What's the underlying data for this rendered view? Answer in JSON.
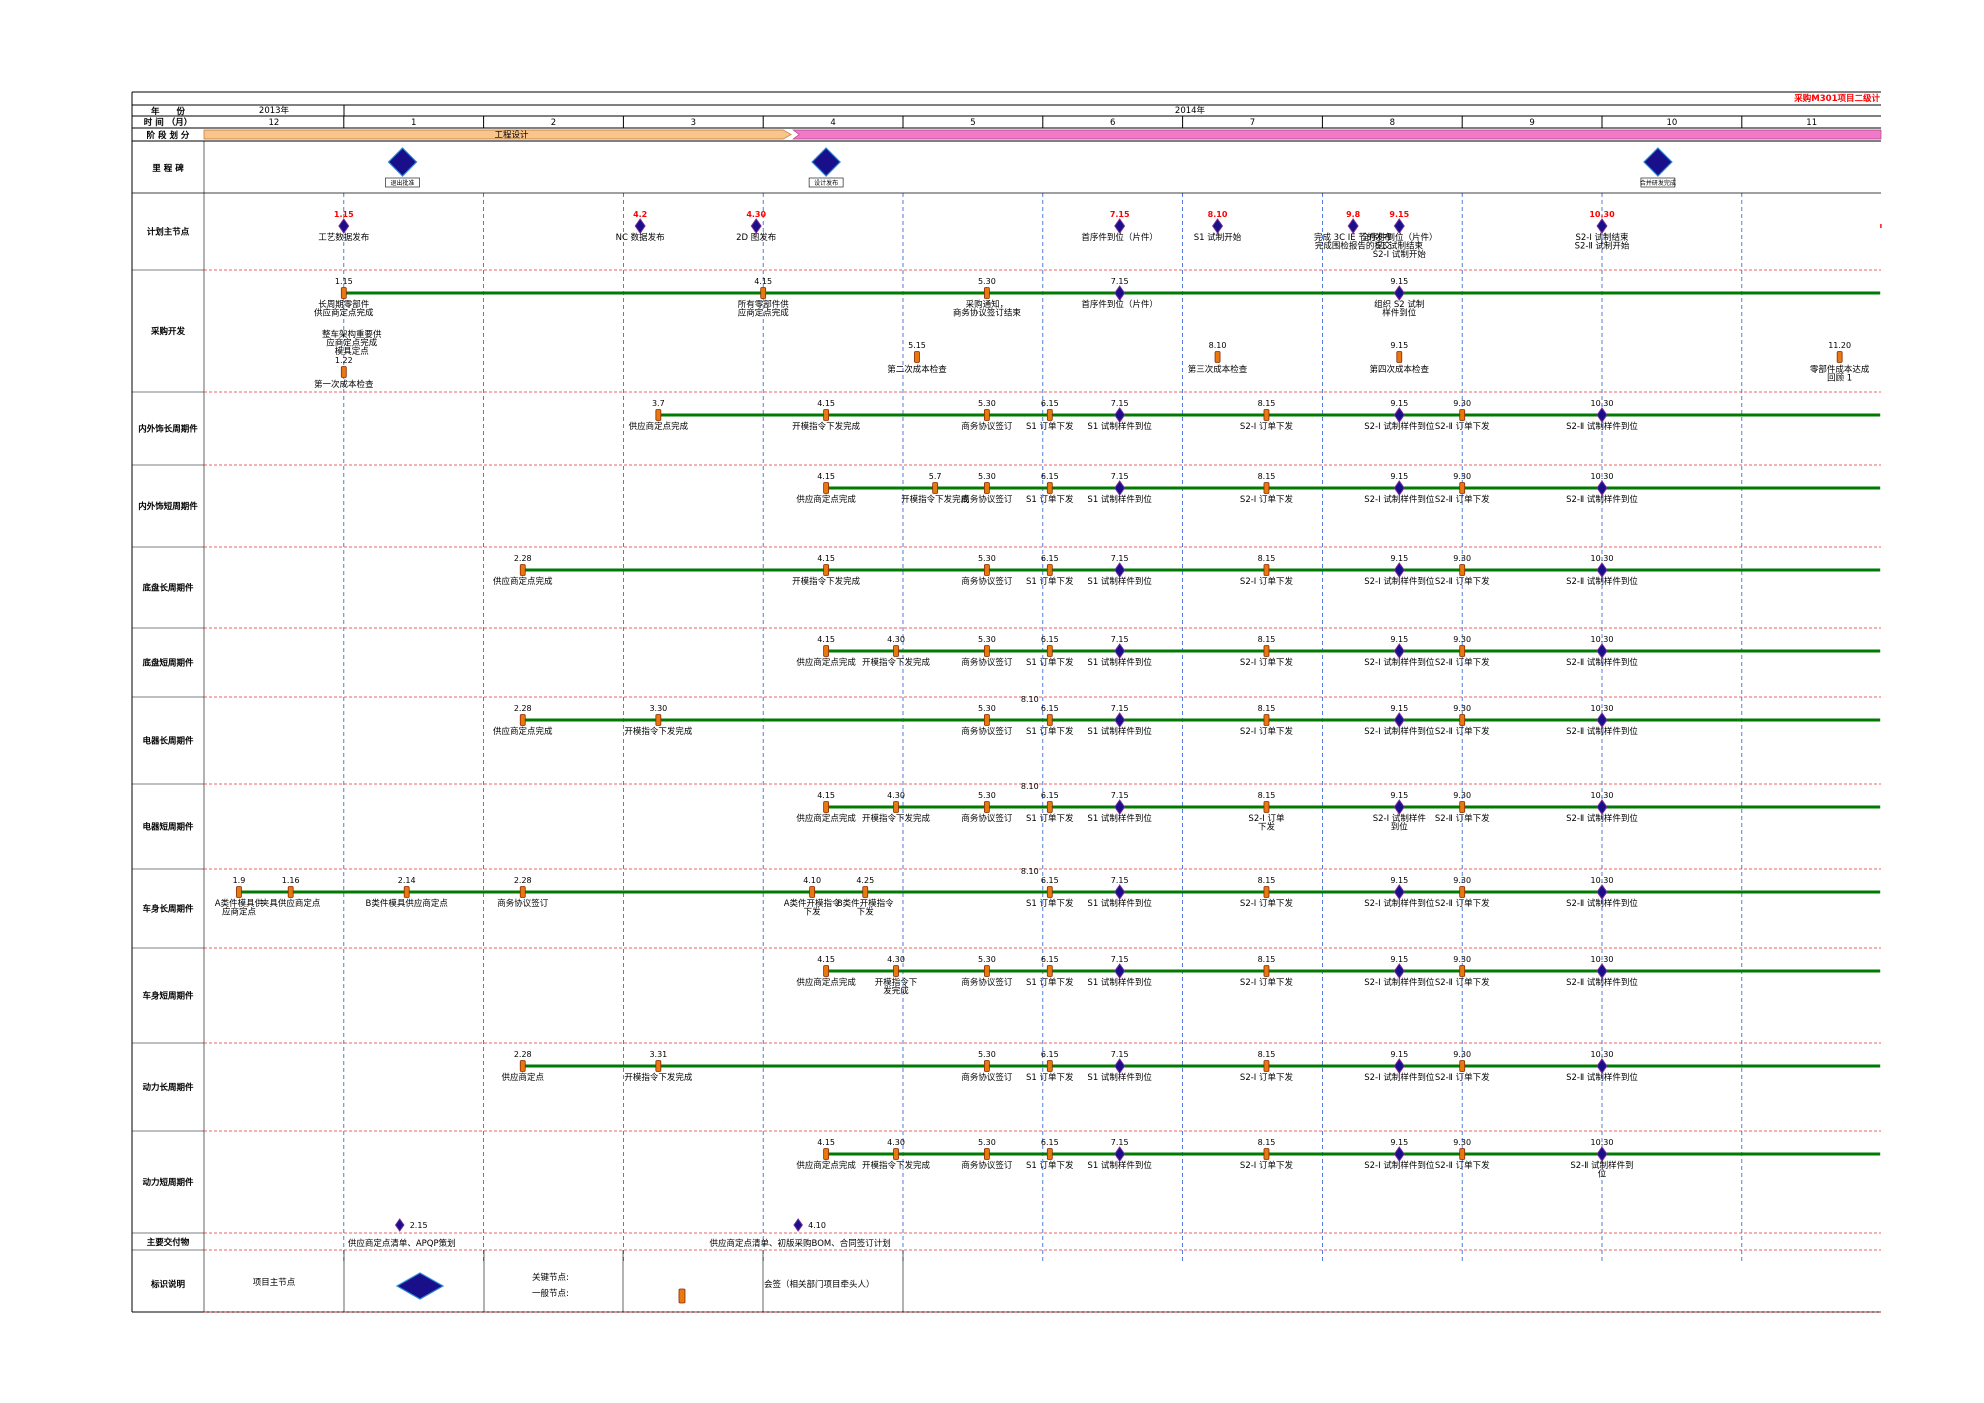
{
  "header": {
    "title": "采购M301项目二级计",
    "year_label": "年　　份",
    "month_label": "时 间 （月）",
    "phase_label": "阶 段 划 分",
    "years": [
      "2013年",
      "2014年"
    ],
    "months": [
      "12",
      "1",
      "2",
      "3",
      "4",
      "5",
      "6",
      "7",
      "8",
      "9",
      "10",
      "11"
    ],
    "phase_design": "工程设计"
  },
  "milestone_row": {
    "label": "里 程 碑",
    "items": [
      {
        "text": "退出批准",
        "month": 1.15
      },
      {
        "text": "设计发布",
        "month": 4.15
      },
      {
        "text": "合并研发完成",
        "month": 10.0
      }
    ]
  },
  "rows": [
    {
      "label": "计划主节点",
      "line_color": "#ff0000",
      "line_start": 12.0,
      "line_end": 11.99,
      "nodes": [
        {
          "date": "1.15",
          "t": 1.0,
          "kind": "major",
          "label": "工艺数据发布",
          "date_red": true
        },
        {
          "date": "4.2",
          "t": 3.12,
          "kind": "major",
          "label": "NC 数据发布",
          "date_red": true
        },
        {
          "date": "4.30",
          "t": 3.95,
          "kind": "major",
          "label": "2D 图发布",
          "date_red": true
        },
        {
          "date": "7.15",
          "t": 6.55,
          "kind": "major",
          "label": "首序件到位（片件）",
          "date_red": true
        },
        {
          "date": "8.10",
          "t": 7.25,
          "kind": "major",
          "label": "S1 试制开始",
          "date_red": true
        },
        {
          "date": "9.8",
          "t": 8.22,
          "kind": "major",
          "label": "完成 3C IE 节的发布\n完成围检报告的提交",
          "date_red": true
        },
        {
          "date": "9.15",
          "t": 8.55,
          "kind": "major",
          "label": "全序件到位（片件）\nS1 试制结束\nS2-Ⅰ 试制开始",
          "date_red": true
        },
        {
          "date": "10.30",
          "t": 10.0,
          "kind": "major",
          "label": "S2-Ⅰ 试制结束\nS2-Ⅱ 试制开始",
          "date_red": true
        }
      ]
    },
    {
      "label": "采购开发",
      "line_color": "#007a00",
      "line_start": 1.0,
      "line_end": 11.99,
      "nodes": [
        {
          "date": "1.15",
          "t": 1.0,
          "kind": "minor",
          "label": "长周期零部件\n供应商定点完成"
        },
        {
          "date": "4.15",
          "t": 4.0,
          "kind": "minor",
          "label": "所有零部件供\n应商定点完成"
        },
        {
          "date": "5.30",
          "t": 5.6,
          "kind": "minor",
          "label": "采购通知，\n商务协议签订结束"
        },
        {
          "date": "7.15",
          "t": 6.55,
          "kind": "major",
          "label": "首序件到位（片件）"
        },
        {
          "date": "9.15",
          "t": 8.55,
          "kind": "major",
          "label": "组织 S2 试制\n样件到位"
        }
      ],
      "extras": [
        {
          "text": "整车架构重要供\n应商定点完成\n模具定点",
          "t": 1.0
        },
        {
          "date": "1.22",
          "label": "第一次成本检查",
          "t": 1.0
        },
        {
          "date": "5.15",
          "label": "第二次成本检查",
          "t": 5.1
        },
        {
          "date": "8.10",
          "label": "第三次成本检查",
          "t": 7.25
        },
        {
          "date": "9.15",
          "label": "第四次成本检查",
          "t": 8.55
        },
        {
          "date": "11.20",
          "label": "零部件成本达成\n回顾 1",
          "t": 11.7
        }
      ]
    },
    {
      "label": "内外饰长周期件",
      "line_color": "#007a00",
      "line_start": 3.25,
      "line_end": 11.99,
      "nodes": [
        {
          "date": "3.7",
          "t": 3.25,
          "kind": "minor",
          "label": "供应商定点完成"
        },
        {
          "date": "4.15",
          "t": 4.45,
          "kind": "minor",
          "label": "开模指令下发完成"
        },
        {
          "date": "5.30",
          "t": 5.6,
          "kind": "minor",
          "label": "商务协议签订"
        },
        {
          "date": "6.15",
          "t": 6.05,
          "kind": "minor",
          "label": "S1 订单下发"
        },
        {
          "date": "7.15",
          "t": 6.55,
          "kind": "major",
          "label": "S1 试制样件到位"
        },
        {
          "date": "8.15",
          "t": 7.6,
          "kind": "minor",
          "label": "S2-Ⅰ 订单下发"
        },
        {
          "date": "9.15",
          "t": 8.55,
          "kind": "major",
          "label": "S2-Ⅰ 试制样件到位"
        },
        {
          "date": "9.30",
          "t": 9.0,
          "kind": "minor",
          "label": "S2-Ⅱ 订单下发"
        },
        {
          "date": "10.30",
          "t": 10.0,
          "kind": "major",
          "label": "S2-Ⅱ 试制样件到位"
        }
      ]
    },
    {
      "label": "内外饰短周期件",
      "line_color": "#007a00",
      "line_start": 4.45,
      "line_end": 11.99,
      "nodes": [
        {
          "date": "4.15",
          "t": 4.45,
          "kind": "minor",
          "label": "供应商定点完成"
        },
        {
          "date": "5.7",
          "t": 5.23,
          "kind": "minor",
          "label": "开模指令下发完成"
        },
        {
          "date": "5.30",
          "t": 5.6,
          "kind": "minor",
          "label": "商务协议签订"
        },
        {
          "date": "6.15",
          "t": 6.05,
          "kind": "minor",
          "label": "S1 订单下发"
        },
        {
          "date": "7.15",
          "t": 6.55,
          "kind": "major",
          "label": "S1 试制样件到位"
        },
        {
          "date": "8.15",
          "t": 7.6,
          "kind": "minor",
          "label": "S2-Ⅰ 订单下发"
        },
        {
          "date": "9.15",
          "t": 8.55,
          "kind": "major",
          "label": "S2-Ⅰ 试制样件到位"
        },
        {
          "date": "9.30",
          "t": 9.0,
          "kind": "minor",
          "label": "S2-Ⅱ 订单下发"
        },
        {
          "date": "10.30",
          "t": 10.0,
          "kind": "major",
          "label": "S2-Ⅱ 试制样件到位"
        }
      ]
    },
    {
      "label": "底盘长周期件",
      "line_color": "#007a00",
      "line_start": 2.28,
      "line_end": 11.99,
      "nodes": [
        {
          "date": "2.28",
          "t": 2.28,
          "kind": "minor",
          "label": "供应商定点完成"
        },
        {
          "date": "4.15",
          "t": 4.45,
          "kind": "minor",
          "label": "开模指令下发完成"
        },
        {
          "date": "5.30",
          "t": 5.6,
          "kind": "minor",
          "label": "商务协议签订"
        },
        {
          "date": "6.15",
          "t": 6.05,
          "kind": "minor",
          "label": "S1 订单下发"
        },
        {
          "date": "7.15",
          "t": 6.55,
          "kind": "major",
          "label": "S1 试制样件到位"
        },
        {
          "date": "8.15",
          "t": 7.6,
          "kind": "minor",
          "label": "S2-Ⅰ 订单下发"
        },
        {
          "date": "9.15",
          "t": 8.55,
          "kind": "major",
          "label": "S2-Ⅰ 试制样件到位"
        },
        {
          "date": "9.30",
          "t": 9.0,
          "kind": "minor",
          "label": "S2-Ⅱ 订单下发"
        },
        {
          "date": "10.30",
          "t": 10.0,
          "kind": "major",
          "label": "S2-Ⅱ 试制样件到位"
        }
      ]
    },
    {
      "label": "底盘短周期件",
      "line_color": "#007a00",
      "line_start": 4.45,
      "line_end": 11.99,
      "nodes": [
        {
          "date": "4.15",
          "t": 4.45,
          "kind": "minor",
          "label": "供应商定点完成"
        },
        {
          "date": "4.30",
          "t": 4.95,
          "kind": "minor",
          "label": "开模指令下发完成"
        },
        {
          "date": "5.30",
          "t": 5.6,
          "kind": "minor",
          "label": "商务协议签订"
        },
        {
          "date": "6.15",
          "t": 6.05,
          "kind": "minor",
          "label": "S1 订单下发"
        },
        {
          "date": "7.15",
          "t": 6.55,
          "kind": "major",
          "label": "S1 试制样件到位"
        },
        {
          "date": "8.15",
          "t": 7.6,
          "kind": "minor",
          "label": "S2-Ⅰ 订单下发"
        },
        {
          "date": "9.15",
          "t": 8.55,
          "kind": "major",
          "label": "S2-Ⅰ 试制样件到位"
        },
        {
          "date": "9.30",
          "t": 9.0,
          "kind": "minor",
          "label": "S2-Ⅱ 订单下发"
        },
        {
          "date": "10.30",
          "t": 10.0,
          "kind": "major",
          "label": "S2-Ⅱ 试制样件到位"
        }
      ]
    },
    {
      "label": "电器长周期件",
      "line_color": "#007a00",
      "line_start": 2.28,
      "line_end": 11.99,
      "nodes": [
        {
          "date": "2.28",
          "t": 2.28,
          "kind": "minor",
          "label": "供应商定点完成"
        },
        {
          "date": "3.30",
          "t": 3.25,
          "kind": "minor",
          "label": "开模指令下发完成"
        },
        {
          "date": "5.30",
          "t": 5.6,
          "kind": "minor",
          "label": "商务协议签订"
        },
        {
          "date": "6.15",
          "t": 6.05,
          "kind": "minor",
          "label": "S1 订单下发",
          "top": "8.10"
        },
        {
          "date": "7.15",
          "t": 6.55,
          "kind": "major",
          "label": "S1 试制样件到位"
        },
        {
          "date": "8.15",
          "t": 7.6,
          "kind": "minor",
          "label": "S2-Ⅰ 订单下发"
        },
        {
          "date": "9.15",
          "t": 8.55,
          "kind": "major",
          "label": "S2-Ⅰ 试制样件到位"
        },
        {
          "date": "9.30",
          "t": 9.0,
          "kind": "minor",
          "label": "S2-Ⅱ 订单下发"
        },
        {
          "date": "10.30",
          "t": 10.0,
          "kind": "major",
          "label": "S2-Ⅱ 试制样件到位"
        }
      ]
    },
    {
      "label": "电器短周期件",
      "line_color": "#007a00",
      "line_start": 4.45,
      "line_end": 11.99,
      "nodes": [
        {
          "date": "4.15",
          "t": 4.45,
          "kind": "minor",
          "label": "供应商定点完成"
        },
        {
          "date": "4.30",
          "t": 4.95,
          "kind": "minor",
          "label": "开模指令下发完成"
        },
        {
          "date": "5.30",
          "t": 5.6,
          "kind": "minor",
          "label": "商务协议签订"
        },
        {
          "date": "6.15",
          "t": 6.05,
          "kind": "minor",
          "label": "S1 订单下发",
          "top": "8.10"
        },
        {
          "date": "7.15",
          "t": 6.55,
          "kind": "major",
          "label": "S1 试制样件到位"
        },
        {
          "date": "8.15",
          "t": 7.6,
          "kind": "minor",
          "label": "S2-Ⅰ 订单\n下发"
        },
        {
          "date": "9.15",
          "t": 8.55,
          "kind": "major",
          "label": "S2-Ⅰ 试制样件\n到位"
        },
        {
          "date": "9.30",
          "t": 9.0,
          "kind": "minor",
          "label": "S2-Ⅱ 订单下发"
        },
        {
          "date": "10.30",
          "t": 10.0,
          "kind": "major",
          "label": "S2-Ⅱ 试制样件到位"
        }
      ]
    },
    {
      "label": "车身长周期件",
      "line_color": "#007a00",
      "line_start": 0.25,
      "line_end": 11.99,
      "nodes": [
        {
          "date": "1.9",
          "t": 0.25,
          "kind": "minor",
          "label": "A类件模具供\n应商定点"
        },
        {
          "date": "1.16",
          "t": 0.62,
          "kind": "minor",
          "label": "夹具供应商定点"
        },
        {
          "date": "2.14",
          "t": 1.45,
          "kind": "minor",
          "label": "B类件模具供应商定点"
        },
        {
          "date": "2.28",
          "t": 2.28,
          "kind": "minor",
          "label": "商务协议签订"
        },
        {
          "date": "4.10",
          "t": 4.35,
          "kind": "minor",
          "label": "A类件开模指令\n下发"
        },
        {
          "date": "4.25",
          "t": 4.73,
          "kind": "minor",
          "label": "B类件开模指令\n下发"
        },
        {
          "date": "6.15",
          "t": 6.05,
          "kind": "minor",
          "label": "S1 订单下发",
          "top": "8.10"
        },
        {
          "date": "7.15",
          "t": 6.55,
          "kind": "major",
          "label": "S1 试制样件到位"
        },
        {
          "date": "8.15",
          "t": 7.6,
          "kind": "minor",
          "label": "S2-Ⅰ 订单下发"
        },
        {
          "date": "9.15",
          "t": 8.55,
          "kind": "major",
          "label": "S2-Ⅰ 试制样件到位"
        },
        {
          "date": "9.30",
          "t": 9.0,
          "kind": "minor",
          "label": "S2-Ⅱ 订单下发"
        },
        {
          "date": "10.30",
          "t": 10.0,
          "kind": "major",
          "label": "S2-Ⅱ 试制样件到位"
        }
      ]
    },
    {
      "label": "车身短周期件",
      "line_color": "#007a00",
      "line_start": 4.45,
      "line_end": 11.99,
      "nodes": [
        {
          "date": "4.15",
          "t": 4.45,
          "kind": "minor",
          "label": "供应商定点完成"
        },
        {
          "date": "4.30",
          "t": 4.95,
          "kind": "minor",
          "label": "开模指令下\n发完成"
        },
        {
          "date": "5.30",
          "t": 5.6,
          "kind": "minor",
          "label": "商务协议签订"
        },
        {
          "date": "6.15",
          "t": 6.05,
          "kind": "minor",
          "label": "S1 订单下发"
        },
        {
          "date": "7.15",
          "t": 6.55,
          "kind": "major",
          "label": "S1 试制样件到位"
        },
        {
          "date": "8.15",
          "t": 7.6,
          "kind": "minor",
          "label": "S2-Ⅰ 订单下发"
        },
        {
          "date": "9.15",
          "t": 8.55,
          "kind": "major",
          "label": "S2-Ⅰ 试制样件到位"
        },
        {
          "date": "9.30",
          "t": 9.0,
          "kind": "minor",
          "label": "S2-Ⅱ 订单下发"
        },
        {
          "date": "10.30",
          "t": 10.0,
          "kind": "major",
          "label": "S2-Ⅱ 试制样件到位"
        }
      ]
    },
    {
      "label": "动力长周期件",
      "line_color": "#007a00",
      "line_start": 2.28,
      "line_end": 11.99,
      "nodes": [
        {
          "date": "2.28",
          "t": 2.28,
          "kind": "minor",
          "label": "供应商定点"
        },
        {
          "date": "3.31",
          "t": 3.25,
          "kind": "minor",
          "label": "开模指令下发完成"
        },
        {
          "date": "5.30",
          "t": 5.6,
          "kind": "minor",
          "label": "商务协议签订"
        },
        {
          "date": "6.15",
          "t": 6.05,
          "kind": "minor",
          "label": "S1 订单下发"
        },
        {
          "date": "7.15",
          "t": 6.55,
          "kind": "major",
          "label": "S1 试制样件到位"
        },
        {
          "date": "8.15",
          "t": 7.6,
          "kind": "minor",
          "label": "S2-Ⅰ 订单下发"
        },
        {
          "date": "9.15",
          "t": 8.55,
          "kind": "major",
          "label": "S2-Ⅰ 试制样件到位"
        },
        {
          "date": "9.30",
          "t": 9.0,
          "kind": "minor",
          "label": "S2-Ⅱ 订单下发"
        },
        {
          "date": "10.30",
          "t": 10.0,
          "kind": "major",
          "label": "S2-Ⅱ 试制样件到位"
        }
      ]
    },
    {
      "label": "动力短周期件",
      "line_color": "#007a00",
      "line_start": 4.45,
      "line_end": 11.99,
      "nodes": [
        {
          "date": "4.15",
          "t": 4.45,
          "kind": "minor",
          "label": "供应商定点完成"
        },
        {
          "date": "4.30",
          "t": 4.95,
          "kind": "minor",
          "label": "开模指令下发完成"
        },
        {
          "date": "5.30",
          "t": 5.6,
          "kind": "minor",
          "label": "商务协议签订"
        },
        {
          "date": "6.15",
          "t": 6.05,
          "kind": "minor",
          "label": "S1 订单下发"
        },
        {
          "date": "7.15",
          "t": 6.55,
          "kind": "major",
          "label": "S1 试制样件到位"
        },
        {
          "date": "8.15",
          "t": 7.6,
          "kind": "minor",
          "label": "S2-Ⅰ 订单下发"
        },
        {
          "date": "9.15",
          "t": 8.55,
          "kind": "major",
          "label": "S2-Ⅰ 试制样件到位"
        },
        {
          "date": "9.30",
          "t": 9.0,
          "kind": "minor",
          "label": "S2-Ⅱ 订单下发"
        },
        {
          "date": "10.30",
          "t": 10.0,
          "kind": "major",
          "label": "S2-Ⅱ 试制样件到\n位"
        }
      ]
    }
  ],
  "deliverables": {
    "label": "主要交付物",
    "items": [
      {
        "date": "2.15",
        "t": 1.4,
        "text": "供应商定点清单、APQP策划"
      },
      {
        "date": "4.10",
        "t": 4.25,
        "text": "供应商定点清单、初版采购BOM、合同签订计划"
      }
    ]
  },
  "legend": {
    "label": "标识说明",
    "major_text": "项目主节点",
    "key_node": "关键节点:",
    "normal_node": "一般节点:",
    "signoff": "会签（相关部门项目牵头人）"
  },
  "colors": {
    "major_fill": "#1a0f8a",
    "major_stroke": "#7a2a9a",
    "minor_fill": "#e87810",
    "minor_stroke": "#8a2a00",
    "red_line": "#ff0000",
    "green_line": "#007a00",
    "phase_orange": "#f8c68c",
    "phase_pink": "#f07ac8",
    "title_red": "#ff0000"
  }
}
